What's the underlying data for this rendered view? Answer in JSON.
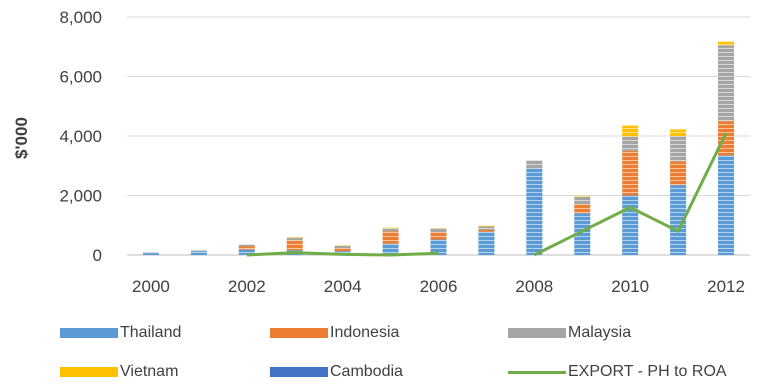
{
  "chart_data": {
    "type": "bar",
    "stacked": true,
    "categories": [
      "2000",
      "2001",
      "2002",
      "2003",
      "2004",
      "2005",
      "2006",
      "2007",
      "2008",
      "2009",
      "2010",
      "2011",
      "2012"
    ],
    "x_tick_labels": [
      "2000",
      "2002",
      "2004",
      "2006",
      "2008",
      "2010",
      "2012"
    ],
    "ylabel": "$'000",
    "ylim": [
      0,
      8000
    ],
    "y_ticks": [
      0,
      2000,
      4000,
      6000,
      8000
    ],
    "y_tick_labels": [
      "0",
      "2,000",
      "4,000",
      "6,000",
      "8,000"
    ],
    "grid": true,
    "series": [
      {
        "name": "Thailand",
        "color": "#5b9bd5",
        "values": [
          60,
          130,
          180,
          160,
          130,
          380,
          520,
          780,
          2900,
          1400,
          2000,
          2350,
          3350
        ]
      },
      {
        "name": "Indonesia",
        "color": "#ed7d31",
        "values": [
          0,
          0,
          120,
          330,
          100,
          420,
          250,
          60,
          0,
          300,
          1500,
          800,
          1150
        ]
      },
      {
        "name": "Malaysia",
        "color": "#a5a5a5",
        "values": [
          40,
          20,
          50,
          80,
          80,
          100,
          120,
          120,
          280,
          250,
          480,
          850,
          2550
        ]
      },
      {
        "name": "Vietnam",
        "color": "#ffc000",
        "values": [
          0,
          0,
          0,
          20,
          10,
          20,
          20,
          20,
          0,
          40,
          370,
          220,
          120
        ]
      },
      {
        "name": "Cambodia",
        "color": "#4472c4",
        "values": [
          0,
          0,
          0,
          0,
          0,
          0,
          0,
          0,
          0,
          0,
          0,
          0,
          0
        ]
      }
    ],
    "line_series": {
      "name": "EXPORT - PH to ROA",
      "color": "#70ad47",
      "values": [
        0,
        null,
        0,
        80,
        20,
        0,
        60,
        null,
        0,
        800,
        1600,
        800,
        4100
      ]
    },
    "legend_position": "bottom"
  }
}
